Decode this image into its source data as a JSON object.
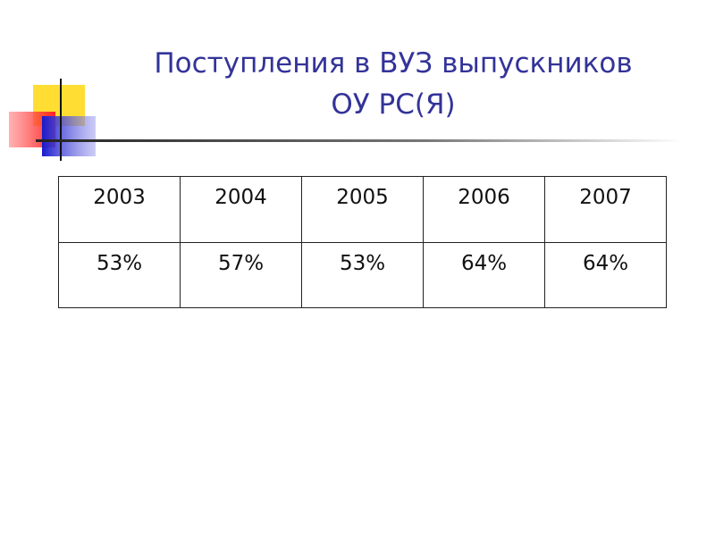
{
  "title_lines": [
    "Поступления в ВУЗ выпускников",
    "ОУ РС(Я)"
  ],
  "table": {
    "rows": [
      [
        "2003",
        "2004",
        "2005",
        "2006",
        "2007"
      ],
      [
        "53%",
        "57%",
        "53%",
        "64%",
        "64%"
      ]
    ]
  }
}
